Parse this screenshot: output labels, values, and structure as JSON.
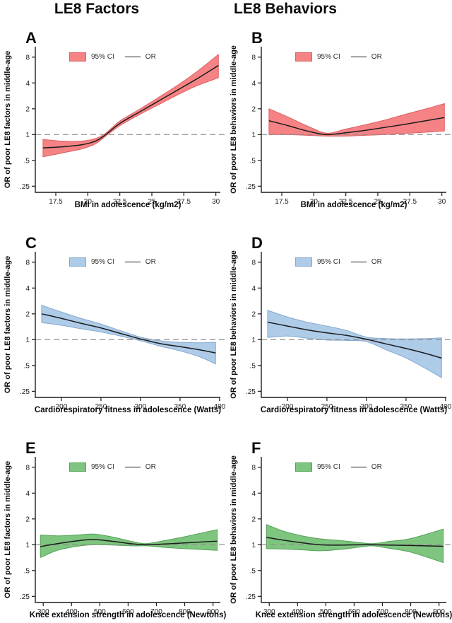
{
  "figure": {
    "headers": [
      {
        "label": "LE8 Factors"
      },
      {
        "label": "LE8 Behaviors"
      }
    ]
  },
  "chart_data": [
    {
      "type": "area",
      "panel_label": "A",
      "ylabel": "OR of poor LE8 factors in middle-age",
      "xlabel": "BMI in adolescence (kg/m2)",
      "legend_ci": "95% CI",
      "legend_or": "OR",
      "ci_fill": "#F58385",
      "ci_edge": "#DE6163",
      "line_color": "#1c1c1c",
      "ref_line": 1,
      "x_range": [
        15.9,
        30.35
      ],
      "y_scale": [
        0.212,
        10.6
      ],
      "x_ticks": [
        {
          "v": 17.5,
          "label": "17.5"
        },
        {
          "v": 20,
          "label": "20"
        },
        {
          "v": 22.5,
          "label": "22.5"
        },
        {
          "v": 25,
          "label": "25"
        },
        {
          "v": 27.5,
          "label": "27.5"
        },
        {
          "v": 30,
          "label": "30"
        }
      ],
      "y_ticks": [
        {
          "v": 8,
          "label": "8"
        },
        {
          "v": 4,
          "label": "4"
        },
        {
          "v": 2,
          "label": "2"
        },
        {
          "v": 1,
          "label": "1"
        },
        {
          "v": 0.5,
          "label": ".5"
        },
        {
          "v": 0.25,
          "label": ".25"
        }
      ],
      "points": [
        {
          "x": 16.5,
          "or": 0.7,
          "lo": 0.55,
          "hi": 0.88
        },
        {
          "x": 18.0,
          "or": 0.72,
          "lo": 0.61,
          "hi": 0.84
        },
        {
          "x": 19.5,
          "or": 0.76,
          "lo": 0.68,
          "hi": 0.84
        },
        {
          "x": 20.6,
          "or": 0.84,
          "lo": 0.78,
          "hi": 0.9
        },
        {
          "x": 21.4,
          "or": 1.0,
          "lo": 0.96,
          "hi": 1.04
        },
        {
          "x": 22.5,
          "or": 1.35,
          "lo": 1.27,
          "hi": 1.44
        },
        {
          "x": 24.0,
          "or": 1.82,
          "lo": 1.7,
          "hi": 1.96
        },
        {
          "x": 25.5,
          "or": 2.45,
          "lo": 2.22,
          "hi": 2.7
        },
        {
          "x": 27.0,
          "or": 3.3,
          "lo": 2.9,
          "hi": 3.75
        },
        {
          "x": 28.5,
          "or": 4.45,
          "lo": 3.7,
          "hi": 5.4
        },
        {
          "x": 30.2,
          "or": 6.4,
          "lo": 4.6,
          "hi": 8.6
        }
      ]
    },
    {
      "type": "area",
      "panel_label": "B",
      "ylabel": "OR of poor LE8 behaviors in middle-age",
      "xlabel": "BMI in adolescence (kg/m2)",
      "legend_ci": "95% CI",
      "legend_or": "OR",
      "ci_fill": "#F58385",
      "ci_edge": "#DE6163",
      "line_color": "#1c1c1c",
      "ref_line": 1,
      "x_range": [
        15.9,
        30.35
      ],
      "y_scale": [
        0.212,
        10.6
      ],
      "x_ticks": [
        {
          "v": 17.5,
          "label": "17.5"
        },
        {
          "v": 20,
          "label": "20"
        },
        {
          "v": 22.5,
          "label": "22.5"
        },
        {
          "v": 25,
          "label": "25"
        },
        {
          "v": 27.5,
          "label": "27.5"
        },
        {
          "v": 30,
          "label": "30"
        }
      ],
      "y_ticks": [
        {
          "v": 8,
          "label": "8"
        },
        {
          "v": 4,
          "label": "4"
        },
        {
          "v": 2,
          "label": "2"
        },
        {
          "v": 1,
          "label": "1"
        },
        {
          "v": 0.5,
          "label": ".5"
        },
        {
          "v": 0.25,
          "label": ".25"
        }
      ],
      "points": [
        {
          "x": 16.5,
          "or": 1.45,
          "lo": 1.0,
          "hi": 2.0
        },
        {
          "x": 18.0,
          "or": 1.27,
          "lo": 1.0,
          "hi": 1.6
        },
        {
          "x": 19.5,
          "or": 1.1,
          "lo": 0.98,
          "hi": 1.26
        },
        {
          "x": 21.0,
          "or": 1.0,
          "lo": 0.96,
          "hi": 1.04
        },
        {
          "x": 22.5,
          "or": 1.05,
          "lo": 0.96,
          "hi": 1.16
        },
        {
          "x": 24.0,
          "or": 1.12,
          "lo": 0.98,
          "hi": 1.3
        },
        {
          "x": 25.5,
          "or": 1.21,
          "lo": 1.0,
          "hi": 1.47
        },
        {
          "x": 27.0,
          "or": 1.31,
          "lo": 1.03,
          "hi": 1.7
        },
        {
          "x": 28.5,
          "or": 1.43,
          "lo": 1.06,
          "hi": 1.95
        },
        {
          "x": 30.2,
          "or": 1.58,
          "lo": 1.1,
          "hi": 2.3
        }
      ]
    },
    {
      "type": "area",
      "panel_label": "C",
      "ylabel": "OR of poor LE8 factors in middle-age",
      "xlabel": "Cardiorespiratory fitness in adolescence (Watts)",
      "legend_ci": "95% CI",
      "legend_or": "OR",
      "ci_fill": "#AECBE8",
      "ci_edge": "#84A9CE",
      "line_color": "#1c1c1c",
      "ref_line": 1,
      "x_range": [
        167,
        401
      ],
      "y_scale": [
        0.212,
        10.6
      ],
      "x_ticks": [
        {
          "v": 200,
          "label": "200"
        },
        {
          "v": 250,
          "label": "250"
        },
        {
          "v": 300,
          "label": "300"
        },
        {
          "v": 350,
          "label": "350"
        },
        {
          "v": 400,
          "label": "400"
        }
      ],
      "y_ticks": [
        {
          "v": 8,
          "label": "8"
        },
        {
          "v": 4,
          "label": "4"
        },
        {
          "v": 2,
          "label": "2"
        },
        {
          "v": 1,
          "label": "1"
        },
        {
          "v": 0.5,
          "label": ".5"
        },
        {
          "v": 0.25,
          "label": ".25"
        }
      ],
      "points": [
        {
          "x": 175,
          "or": 2.0,
          "lo": 1.58,
          "hi": 2.52
        },
        {
          "x": 200,
          "or": 1.77,
          "lo": 1.47,
          "hi": 2.1
        },
        {
          "x": 225,
          "or": 1.55,
          "lo": 1.34,
          "hi": 1.77
        },
        {
          "x": 250,
          "or": 1.37,
          "lo": 1.23,
          "hi": 1.52
        },
        {
          "x": 275,
          "or": 1.18,
          "lo": 1.1,
          "hi": 1.27
        },
        {
          "x": 300,
          "or": 1.02,
          "lo": 0.97,
          "hi": 1.07
        },
        {
          "x": 325,
          "or": 0.9,
          "lo": 0.84,
          "hi": 0.97
        },
        {
          "x": 350,
          "or": 0.83,
          "lo": 0.74,
          "hi": 0.93
        },
        {
          "x": 375,
          "or": 0.76,
          "lo": 0.63,
          "hi": 0.92
        },
        {
          "x": 395,
          "or": 0.7,
          "lo": 0.52,
          "hi": 0.93
        }
      ]
    },
    {
      "type": "area",
      "panel_label": "D",
      "ylabel": "OR of poor LE8 behaviors in middle-age",
      "xlabel": "Cardiorespiratory fitness in adolescence (Watts)",
      "legend_ci": "95% CI",
      "legend_or": "OR",
      "ci_fill": "#AECBE8",
      "ci_edge": "#84A9CE",
      "line_color": "#1c1c1c",
      "ref_line": 1,
      "x_range": [
        167,
        401
      ],
      "y_scale": [
        0.212,
        10.6
      ],
      "x_ticks": [
        {
          "v": 200,
          "label": "200"
        },
        {
          "v": 250,
          "label": "250"
        },
        {
          "v": 300,
          "label": "300"
        },
        {
          "v": 350,
          "label": "350"
        },
        {
          "v": 400,
          "label": "400"
        }
      ],
      "y_ticks": [
        {
          "v": 8,
          "label": "8"
        },
        {
          "v": 4,
          "label": "4"
        },
        {
          "v": 2,
          "label": "2"
        },
        {
          "v": 1,
          "label": "1"
        },
        {
          "v": 0.5,
          "label": ".5"
        },
        {
          "v": 0.25,
          "label": ".25"
        }
      ],
      "points": [
        {
          "x": 175,
          "or": 1.6,
          "lo": 1.06,
          "hi": 2.2
        },
        {
          "x": 200,
          "or": 1.44,
          "lo": 1.1,
          "hi": 1.84
        },
        {
          "x": 225,
          "or": 1.3,
          "lo": 1.04,
          "hi": 1.6
        },
        {
          "x": 250,
          "or": 1.2,
          "lo": 0.99,
          "hi": 1.44
        },
        {
          "x": 275,
          "or": 1.12,
          "lo": 0.98,
          "hi": 1.28
        },
        {
          "x": 300,
          "or": 1.01,
          "lo": 0.95,
          "hi": 1.07
        },
        {
          "x": 325,
          "or": 0.89,
          "lo": 0.76,
          "hi": 1.03
        },
        {
          "x": 350,
          "or": 0.79,
          "lo": 0.61,
          "hi": 1.02
        },
        {
          "x": 375,
          "or": 0.69,
          "lo": 0.46,
          "hi": 1.03
        },
        {
          "x": 395,
          "or": 0.61,
          "lo": 0.36,
          "hi": 1.05
        }
      ]
    },
    {
      "type": "area",
      "panel_label": "E",
      "ylabel": "OR of poor LE8 factors in middle-age",
      "xlabel": "Knee extension strength in adolescence (Newtons)",
      "legend_ci": "95% CI",
      "legend_or": "OR",
      "ci_fill": "#7EC57F",
      "ci_edge": "#56A257",
      "line_color": "#1c1c1c",
      "ref_line": 1,
      "x_range": [
        272,
        926
      ],
      "y_scale": [
        0.212,
        10.6
      ],
      "x_ticks": [
        {
          "v": 300,
          "label": "300"
        },
        {
          "v": 400,
          "label": "400"
        },
        {
          "v": 500,
          "label": "500"
        },
        {
          "v": 600,
          "label": "600"
        },
        {
          "v": 700,
          "label": "700"
        },
        {
          "v": 800,
          "label": "800"
        },
        {
          "v": 900,
          "label": "900"
        }
      ],
      "y_ticks": [
        {
          "v": 8,
          "label": "8"
        },
        {
          "v": 4,
          "label": "4"
        },
        {
          "v": 2,
          "label": "2"
        },
        {
          "v": 1,
          "label": "1"
        },
        {
          "v": 0.5,
          "label": ".5"
        },
        {
          "v": 0.25,
          "label": ".25"
        }
      ],
      "points": [
        {
          "x": 290,
          "or": 0.95,
          "lo": 0.71,
          "hi": 1.3
        },
        {
          "x": 350,
          "or": 1.03,
          "lo": 0.86,
          "hi": 1.27
        },
        {
          "x": 420,
          "or": 1.11,
          "lo": 0.96,
          "hi": 1.3
        },
        {
          "x": 480,
          "or": 1.15,
          "lo": 1.0,
          "hi": 1.33
        },
        {
          "x": 550,
          "or": 1.09,
          "lo": 0.99,
          "hi": 1.22
        },
        {
          "x": 620,
          "or": 1.02,
          "lo": 0.97,
          "hi": 1.08
        },
        {
          "x": 665,
          "or": 1.0,
          "lo": 0.97,
          "hi": 1.03
        },
        {
          "x": 730,
          "or": 1.02,
          "lo": 0.93,
          "hi": 1.12
        },
        {
          "x": 800,
          "or": 1.05,
          "lo": 0.9,
          "hi": 1.24
        },
        {
          "x": 915,
          "or": 1.1,
          "lo": 0.86,
          "hi": 1.5
        }
      ]
    },
    {
      "type": "area",
      "panel_label": "F",
      "ylabel": "OR of poor LE8 behaviors in middle-age",
      "xlabel": "Knee extension strength in adolescence (Newtons)",
      "legend_ci": "95% CI",
      "legend_or": "OR",
      "ci_fill": "#7EC57F",
      "ci_edge": "#56A257",
      "line_color": "#1c1c1c",
      "ref_line": 1,
      "x_range": [
        272,
        926
      ],
      "y_scale": [
        0.212,
        10.6
      ],
      "x_ticks": [
        {
          "v": 300,
          "label": "300"
        },
        {
          "v": 400,
          "label": "400"
        },
        {
          "v": 500,
          "label": "500"
        },
        {
          "v": 600,
          "label": "600"
        },
        {
          "v": 700,
          "label": "700"
        },
        {
          "v": 800,
          "label": "800"
        },
        {
          "v": 900,
          "label": "900"
        }
      ],
      "y_ticks": [
        {
          "v": 8,
          "label": "8"
        },
        {
          "v": 4,
          "label": "4"
        },
        {
          "v": 2,
          "label": "2"
        },
        {
          "v": 1,
          "label": "1"
        },
        {
          "v": 0.5,
          "label": ".5"
        },
        {
          "v": 0.25,
          "label": ".25"
        }
      ],
      "points": [
        {
          "x": 290,
          "or": 1.22,
          "lo": 0.9,
          "hi": 1.72
        },
        {
          "x": 350,
          "or": 1.13,
          "lo": 0.89,
          "hi": 1.44
        },
        {
          "x": 420,
          "or": 1.05,
          "lo": 0.87,
          "hi": 1.26
        },
        {
          "x": 480,
          "or": 1.0,
          "lo": 0.85,
          "hi": 1.17
        },
        {
          "x": 550,
          "or": 0.99,
          "lo": 0.88,
          "hi": 1.12
        },
        {
          "x": 620,
          "or": 1.0,
          "lo": 0.94,
          "hi": 1.06
        },
        {
          "x": 665,
          "or": 1.0,
          "lo": 0.97,
          "hi": 1.03
        },
        {
          "x": 730,
          "or": 0.99,
          "lo": 0.9,
          "hi": 1.1
        },
        {
          "x": 800,
          "or": 0.98,
          "lo": 0.82,
          "hi": 1.18
        },
        {
          "x": 915,
          "or": 0.96,
          "lo": 0.62,
          "hi": 1.52
        }
      ]
    }
  ]
}
